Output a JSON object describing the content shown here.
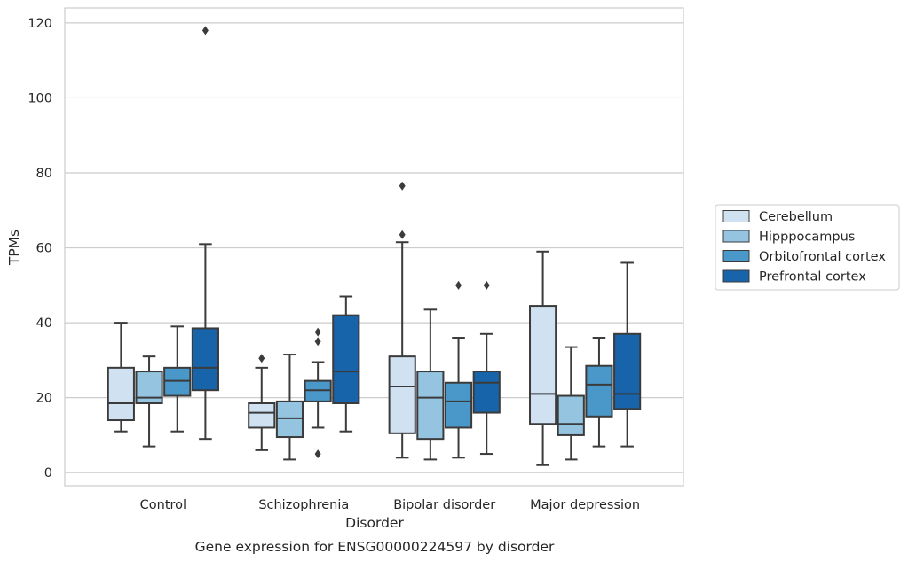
{
  "chart_data": {
    "type": "box",
    "caption": "Gene expression for ENSG00000224597 by disorder",
    "xlabel": "Disorder",
    "ylabel": "TPMs",
    "ylim": [
      -3.5,
      124
    ],
    "yticks": [
      0,
      20,
      40,
      60,
      80,
      100,
      120
    ],
    "grid": "horizontal",
    "legend_position": "right",
    "categories": [
      "Control",
      "Schizophrenia",
      "Bipolar disorder",
      "Major depression"
    ],
    "series": [
      {
        "name": "Cerebellum",
        "color": "#d0e1f2",
        "boxes": [
          {
            "whislo": 11,
            "q1": 14,
            "med": 18.5,
            "q3": 28,
            "whishi": 40,
            "fliers": []
          },
          {
            "whislo": 6,
            "q1": 12,
            "med": 16,
            "q3": 18.5,
            "whishi": 28,
            "fliers": [
              30.5
            ]
          },
          {
            "whislo": 4,
            "q1": 10.5,
            "med": 23,
            "q3": 31,
            "whishi": 61.5,
            "fliers": [
              63.5,
              76.5
            ]
          },
          {
            "whislo": 2,
            "q1": 13,
            "med": 21,
            "q3": 44.5,
            "whishi": 59,
            "fliers": []
          }
        ]
      },
      {
        "name": "Hipppocampus",
        "color": "#94c4df",
        "boxes": [
          {
            "whislo": 7,
            "q1": 18.5,
            "med": 20,
            "q3": 27,
            "whishi": 31,
            "fliers": []
          },
          {
            "whislo": 3.5,
            "q1": 9.5,
            "med": 14.5,
            "q3": 19,
            "whishi": 31.5,
            "fliers": []
          },
          {
            "whislo": 3.5,
            "q1": 9,
            "med": 20,
            "q3": 27,
            "whishi": 43.5,
            "fliers": []
          },
          {
            "whislo": 3.5,
            "q1": 10,
            "med": 13,
            "q3": 20.5,
            "whishi": 33.5,
            "fliers": []
          }
        ]
      },
      {
        "name": "Orbitofrontal cortex",
        "color": "#4a98c9",
        "boxes": [
          {
            "whislo": 11,
            "q1": 20.5,
            "med": 24.5,
            "q3": 28,
            "whishi": 39,
            "fliers": []
          },
          {
            "whislo": 12,
            "q1": 19,
            "med": 22,
            "q3": 24.5,
            "whishi": 29.5,
            "fliers": [
              5,
              35,
              37.5
            ]
          },
          {
            "whislo": 4,
            "q1": 12,
            "med": 19,
            "q3": 24,
            "whishi": 36,
            "fliers": [
              50
            ]
          },
          {
            "whislo": 7,
            "q1": 15,
            "med": 23.5,
            "q3": 28.5,
            "whishi": 36,
            "fliers": []
          }
        ]
      },
      {
        "name": "Prefrontal cortex",
        "color": "#1764ab",
        "boxes": [
          {
            "whislo": 9,
            "q1": 22,
            "med": 28,
            "q3": 38.5,
            "whishi": 61,
            "fliers": [
              118
            ]
          },
          {
            "whislo": 11,
            "q1": 18.5,
            "med": 27,
            "q3": 42,
            "whishi": 47,
            "fliers": []
          },
          {
            "whislo": 5,
            "q1": 16,
            "med": 24,
            "q3": 27,
            "whishi": 37,
            "fliers": [
              50
            ]
          },
          {
            "whislo": 7,
            "q1": 17,
            "med": 21,
            "q3": 37,
            "whishi": 56,
            "fliers": []
          }
        ]
      }
    ]
  }
}
